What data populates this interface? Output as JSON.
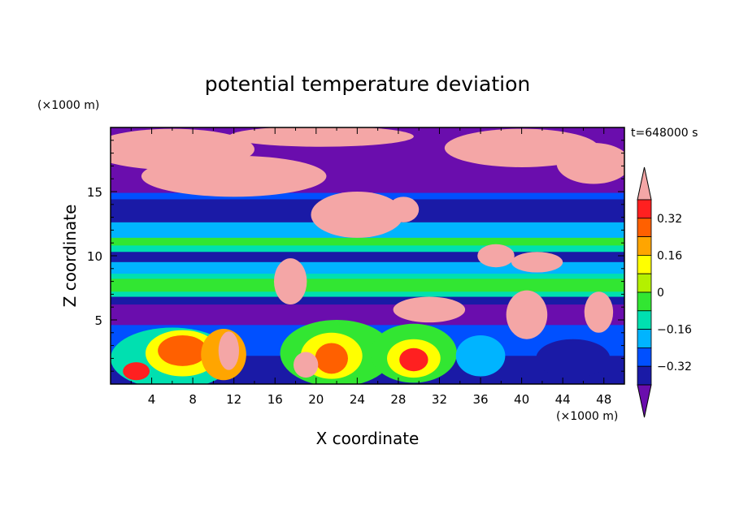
{
  "chart_data": {
    "type": "heatmap",
    "title": "potential temperature deviation",
    "xlabel": "X coordinate",
    "ylabel": "Z coordinate",
    "x_unit": "(×1000 m)",
    "y_unit": "(×1000 m)",
    "time_label": "t=648000 s",
    "xlim": [
      0,
      50
    ],
    "ylim": [
      0,
      20
    ],
    "x_ticks": [
      4,
      8,
      12,
      16,
      20,
      24,
      28,
      32,
      36,
      40,
      44,
      48
    ],
    "y_ticks": [
      5,
      10,
      15
    ],
    "colorbar": {
      "labels": [
        "0.32",
        "0.16",
        "0",
        "−0.16",
        "−0.32"
      ],
      "label_values": [
        0.32,
        0.16,
        0,
        -0.16,
        -0.32
      ],
      "levels": [
        -0.4,
        -0.32,
        -0.24,
        -0.16,
        -0.08,
        0,
        0.08,
        0.16,
        0.24,
        0.32,
        0.4
      ],
      "colors": [
        "#6a0dad",
        "#1a1aa6",
        "#0050ff",
        "#00b4ff",
        "#00e0b0",
        "#32e632",
        "#b4f000",
        "#ffff00",
        "#ffa500",
        "#ff6000",
        "#ff2020",
        "#f4a6a6"
      ]
    },
    "regions": [
      {
        "shape": "rect",
        "x": [
          0,
          50
        ],
        "y": [
          0,
          20
        ],
        "level": 0
      },
      {
        "shape": "rect",
        "x": [
          0,
          50
        ],
        "y": [
          12.6,
          14.4
        ],
        "level": 1
      },
      {
        "shape": "rect",
        "x": [
          0,
          50
        ],
        "y": [
          6.6,
          12.6
        ],
        "level": 4
      },
      {
        "shape": "rect",
        "x": [
          0,
          50
        ],
        "y": [
          11.2,
          12.6
        ],
        "level": 3
      },
      {
        "shape": "rect",
        "x": [
          0,
          50
        ],
        "y": [
          9.5,
          10.3
        ],
        "level": 1
      },
      {
        "shape": "rect",
        "x": [
          0,
          50
        ],
        "y": [
          8.6,
          9.5
        ],
        "level": 3
      },
      {
        "shape": "rect",
        "x": [
          0,
          50
        ],
        "y": [
          6.2,
          6.8
        ],
        "level": 1
      },
      {
        "shape": "rect",
        "x": [
          0,
          50
        ],
        "y": [
          14.4,
          14.9
        ],
        "level": 2
      },
      {
        "shape": "rect",
        "x": [
          0,
          50
        ],
        "y": [
          7.2,
          8.2
        ],
        "level": 5
      },
      {
        "shape": "rect",
        "x": [
          0,
          50
        ],
        "y": [
          10.8,
          11.4
        ],
        "level": 5
      },
      {
        "shape": "rect",
        "x": [
          0,
          50
        ],
        "y": [
          0,
          4.6
        ],
        "level": 2
      },
      {
        "shape": "rect",
        "x": [
          0,
          50
        ],
        "y": [
          0,
          2.2
        ],
        "level": 1
      },
      {
        "shape": "ellipse",
        "cx": 6,
        "cy": 2.0,
        "rx": 6,
        "ry": 2.4,
        "level": 4
      },
      {
        "shape": "ellipse",
        "cx": 7,
        "cy": 2.4,
        "rx": 3.6,
        "ry": 1.8,
        "level": 7
      },
      {
        "shape": "ellipse",
        "cx": 7,
        "cy": 2.6,
        "rx": 2.4,
        "ry": 1.2,
        "level": 9
      },
      {
        "shape": "ellipse",
        "cx": 11,
        "cy": 2.3,
        "rx": 2.2,
        "ry": 2.0,
        "level": 8
      },
      {
        "shape": "ellipse",
        "cx": 11.5,
        "cy": 2.6,
        "rx": 1.0,
        "ry": 1.5,
        "level": 11
      },
      {
        "shape": "ellipse",
        "cx": 2.5,
        "cy": 1.0,
        "rx": 1.3,
        "ry": 0.7,
        "level": 10
      },
      {
        "shape": "ellipse",
        "cx": 22,
        "cy": 2.4,
        "rx": 5.5,
        "ry": 2.6,
        "level": 5
      },
      {
        "shape": "ellipse",
        "cx": 21.5,
        "cy": 2.2,
        "rx": 3.0,
        "ry": 1.8,
        "level": 7
      },
      {
        "shape": "ellipse",
        "cx": 21.5,
        "cy": 2.0,
        "rx": 1.6,
        "ry": 1.2,
        "level": 9
      },
      {
        "shape": "ellipse",
        "cx": 19,
        "cy": 1.5,
        "rx": 1.2,
        "ry": 1.0,
        "level": 11
      },
      {
        "shape": "ellipse",
        "cx": 29.5,
        "cy": 2.4,
        "rx": 4.2,
        "ry": 2.3,
        "level": 5
      },
      {
        "shape": "ellipse",
        "cx": 29.5,
        "cy": 2.0,
        "rx": 2.6,
        "ry": 1.5,
        "level": 7
      },
      {
        "shape": "ellipse",
        "cx": 29.5,
        "cy": 1.9,
        "rx": 1.4,
        "ry": 0.9,
        "level": 10
      },
      {
        "shape": "ellipse",
        "cx": 36,
        "cy": 2.2,
        "rx": 2.4,
        "ry": 1.6,
        "level": 3
      },
      {
        "shape": "ellipse",
        "cx": 45,
        "cy": 2.0,
        "rx": 3.6,
        "ry": 1.5,
        "level": 1
      },
      {
        "shape": "ellipse",
        "cx": 6,
        "cy": 18.3,
        "rx": 8,
        "ry": 1.6,
        "level": 11
      },
      {
        "shape": "ellipse",
        "cx": 12,
        "cy": 16.2,
        "rx": 9,
        "ry": 1.6,
        "level": 11
      },
      {
        "shape": "ellipse",
        "cx": 20.5,
        "cy": 19.3,
        "rx": 9,
        "ry": 0.8,
        "level": 11
      },
      {
        "shape": "ellipse",
        "cx": 40,
        "cy": 18.4,
        "rx": 7.5,
        "ry": 1.5,
        "level": 11
      },
      {
        "shape": "ellipse",
        "cx": 47,
        "cy": 17.2,
        "rx": 3.6,
        "ry": 1.6,
        "level": 11
      },
      {
        "shape": "ellipse",
        "cx": 24,
        "cy": 13.2,
        "rx": 4.5,
        "ry": 1.8,
        "level": 11
      },
      {
        "shape": "ellipse",
        "cx": 28.5,
        "cy": 13.6,
        "rx": 1.5,
        "ry": 1.0,
        "level": 11
      },
      {
        "shape": "ellipse",
        "cx": 17.5,
        "cy": 8.0,
        "rx": 1.6,
        "ry": 1.8,
        "level": 11
      },
      {
        "shape": "ellipse",
        "cx": 31,
        "cy": 5.8,
        "rx": 3.5,
        "ry": 1.0,
        "level": 11
      },
      {
        "shape": "ellipse",
        "cx": 40.5,
        "cy": 5.4,
        "rx": 2.0,
        "ry": 1.9,
        "level": 11
      },
      {
        "shape": "ellipse",
        "cx": 47.5,
        "cy": 5.6,
        "rx": 1.4,
        "ry": 1.6,
        "level": 11
      },
      {
        "shape": "ellipse",
        "cx": 41.5,
        "cy": 9.5,
        "rx": 2.5,
        "ry": 0.8,
        "level": 11
      },
      {
        "shape": "ellipse",
        "cx": 37.5,
        "cy": 10.0,
        "rx": 1.8,
        "ry": 0.9,
        "level": 11
      }
    ]
  }
}
